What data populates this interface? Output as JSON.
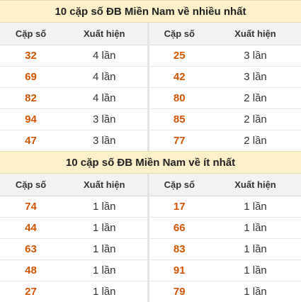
{
  "most": {
    "title": "10 cặp số ĐB Miền Nam về nhiều nhất",
    "headers": [
      "Cặp số",
      "Xuất hiện",
      "Cặp số",
      "Xuất hiện"
    ],
    "rows": [
      {
        "a": "32",
        "a_count": "4 lần",
        "b": "25",
        "b_count": "3 lần"
      },
      {
        "a": "69",
        "a_count": "4 lần",
        "b": "42",
        "b_count": "3 lần"
      },
      {
        "a": "82",
        "a_count": "4 lần",
        "b": "80",
        "b_count": "2 lần"
      },
      {
        "a": "94",
        "a_count": "3 lần",
        "b": "85",
        "b_count": "2 lần"
      },
      {
        "a": "47",
        "a_count": "3 lần",
        "b": "77",
        "b_count": "2 lần"
      }
    ]
  },
  "least": {
    "title": "10 cặp số ĐB Miền Nam về ít nhất",
    "headers": [
      "Cặp số",
      "Xuất hiện",
      "Cặp số",
      "Xuất hiện"
    ],
    "rows": [
      {
        "a": "74",
        "a_count": "1 lần",
        "b": "17",
        "b_count": "1 lần"
      },
      {
        "a": "44",
        "a_count": "1 lần",
        "b": "66",
        "b_count": "1 lần"
      },
      {
        "a": "63",
        "a_count": "1 lần",
        "b": "83",
        "b_count": "1 lần"
      },
      {
        "a": "48",
        "a_count": "1 lần",
        "b": "91",
        "b_count": "1 lần"
      },
      {
        "a": "27",
        "a_count": "1 lần",
        "b": "79",
        "b_count": "1 lần"
      }
    ]
  },
  "colors": {
    "number": "#d35400",
    "title_bg": "#fbf0c8",
    "header_bg": "#f2f2f2"
  }
}
